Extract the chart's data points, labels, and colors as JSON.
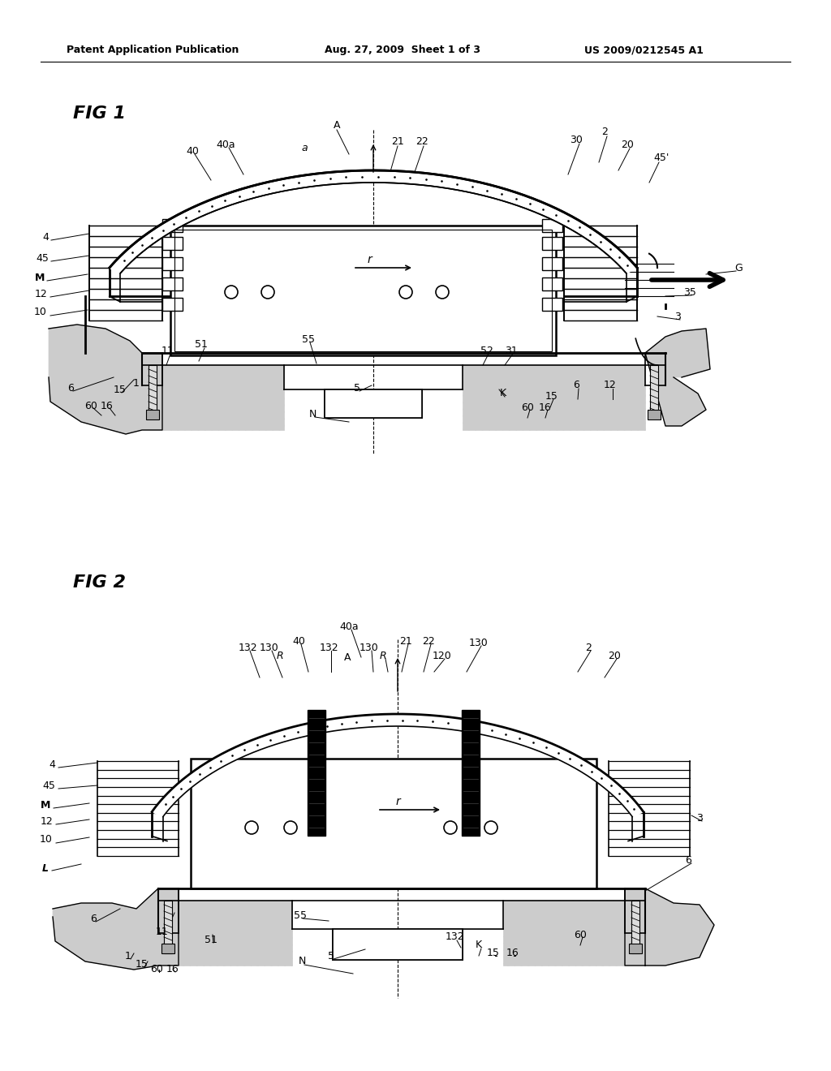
{
  "bg_color": "#ffffff",
  "header_left": "Patent Application Publication",
  "header_mid": "Aug. 27, 2009  Sheet 1 of 3",
  "header_right": "US 2009/0212545 A1"
}
